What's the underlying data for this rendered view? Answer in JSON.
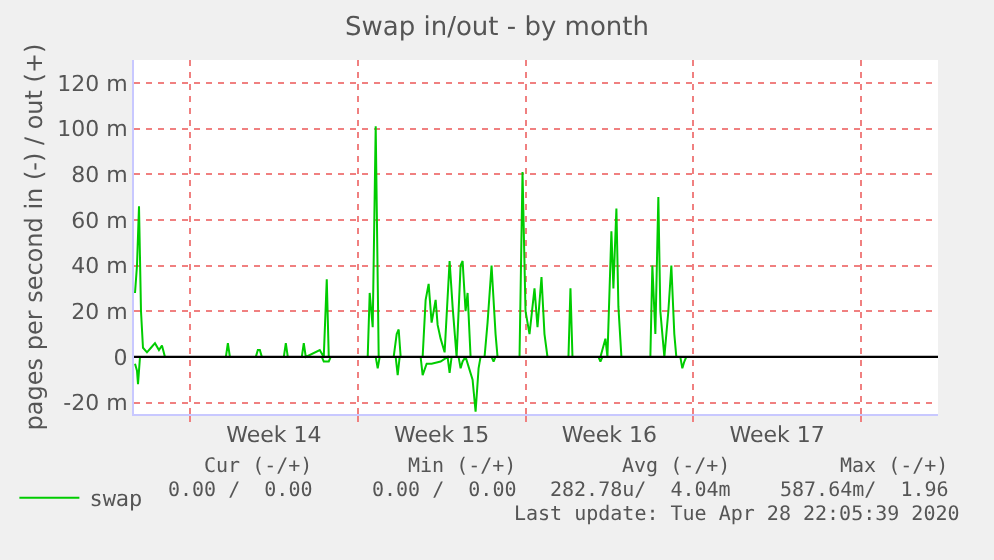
{
  "chart_data": {
    "type": "line",
    "title": "Swap in/out - by month",
    "ylabel": "pages per second in (-) / out (+)",
    "xlim": [
      "2020-03-27T16:00",
      "2020-04-30T05:00"
    ],
    "xticks": [
      {
        "value": "2020-03-30",
        "label": null
      },
      {
        "value": "2020-04-02T12:00",
        "label": "Week 14"
      },
      {
        "value": "2020-04-06",
        "label": null
      },
      {
        "value": "2020-04-09T12:00",
        "label": "Week 15"
      },
      {
        "value": "2020-04-13",
        "label": null
      },
      {
        "value": "2020-04-16T12:00",
        "label": "Week 16"
      },
      {
        "value": "2020-04-20",
        "label": null
      },
      {
        "value": "2020-04-23T12:00",
        "label": "Week 17"
      },
      {
        "value": "2020-04-27",
        "label": null
      }
    ],
    "ylim": [
      -25,
      130
    ],
    "yticks": [
      {
        "value": -20,
        "label": "-20 m"
      },
      0,
      {
        "value": 20,
        "label": "20 m"
      },
      {
        "value": 40,
        "label": "40 m"
      },
      {
        "value": 60,
        "label": "60 m"
      },
      {
        "value": 80,
        "label": "80 m"
      },
      {
        "value": 100,
        "label": "100 m"
      },
      {
        "value": 120,
        "label": "120 m"
      }
    ],
    "grid": true,
    "legend": "bottom left",
    "marker": "none",
    "line_style": "solid",
    "ref_lines": [
      {
        "axis": "y",
        "value": 0,
        "color": "#000000"
      }
    ],
    "series": [
      {
        "name": "swap",
        "color": "#00cc00",
        "x": [
          "2020-03-27T17:00",
          "2020-03-27T19:00",
          "2020-03-27T21:00",
          "2020-03-27T23:00",
          "2020-03-28T01:00",
          "2020-03-28T05:00",
          "2020-03-28T09:00",
          "2020-03-28T13:00",
          "2020-03-28T17:00",
          "2020-03-28T20:00",
          "2020-03-28T23:00",
          "2020-03-31T12:00",
          "2020-03-31T14:00",
          "2020-03-31T16:00",
          "2020-04-01T18:00",
          "2020-04-01T20:00",
          "2020-04-01T22:00",
          "2020-04-02T00:00",
          "2020-04-02T22:00",
          "2020-04-03T00:00",
          "2020-04-03T02:00",
          "2020-04-03T16:00",
          "2020-04-03T18:00",
          "2020-04-03T20:00",
          "2020-04-04T10:00",
          "2020-04-04T14:00",
          "2020-04-04T17:00",
          "2020-04-04T19:00",
          "2020-04-06T10:00",
          "2020-04-06T12:00",
          "2020-04-06T15:00",
          "2020-04-06T18:00",
          "2020-04-06T21:00",
          "2020-04-07T12:00",
          "2020-04-07T15:00",
          "2020-04-07T17:00",
          "2020-04-07T19:00",
          "2020-04-08T17:00",
          "2020-04-08T20:00",
          "2020-04-08T23:00",
          "2020-04-09T02:00",
          "2020-04-09T06:00",
          "2020-04-09T08:00",
          "2020-04-09T11:00",
          "2020-04-09T15:00",
          "2020-04-09T20:00",
          "2020-04-09T23:00",
          "2020-04-10T03:00",
          "2020-04-10T07:00",
          "2020-04-10T09:00",
          "2020-04-10T12:00",
          "2020-04-10T14:00",
          "2020-04-10T17:00",
          "2020-04-11T07:00",
          "2020-04-11T10:00",
          "2020-04-11T14:00",
          "2020-04-11T18:00",
          "2020-04-11T20:00",
          "2020-04-12T18:00",
          "2020-04-12T21:00",
          "2020-04-13T00:00",
          "2020-04-13T04:00",
          "2020-04-13T09:00",
          "2020-04-13T12:00",
          "2020-04-13T16:00",
          "2020-04-13T19:00",
          "2020-04-13T22:00",
          "2020-04-14T19:00",
          "2020-04-14T21:00",
          "2020-04-14T23:00",
          "2020-04-16T03:00",
          "2020-04-16T08:00",
          "2020-04-16T10:00",
          "2020-04-16T14:00",
          "2020-04-16T16:00",
          "2020-04-16T19:00",
          "2020-04-16T21:00",
          "2020-04-17T00:00",
          "2020-04-18T05:00",
          "2020-04-18T07:00",
          "2020-04-18T10:00",
          "2020-04-18T13:00",
          "2020-04-18T15:00",
          "2020-04-18T19:00",
          "2020-04-18T23:00",
          "2020-04-19T02:00",
          "2020-04-19T05:00",
          "2020-04-19T07:00",
          "2020-04-19T17:00"
        ],
        "values": [
          28,
          40,
          66,
          20,
          4,
          2,
          4,
          6,
          3,
          5,
          0,
          0,
          6,
          0,
          0,
          3,
          3,
          0,
          0,
          6,
          0,
          0,
          6,
          0,
          3,
          0,
          34,
          0,
          0,
          28,
          13,
          101,
          0,
          0,
          10,
          12,
          0,
          0,
          25,
          32,
          15,
          25,
          14,
          8,
          2,
          42,
          22,
          0,
          40,
          42,
          20,
          28,
          0,
          0,
          15,
          40,
          10,
          0,
          0,
          81,
          20,
          10,
          30,
          13,
          35,
          10,
          0,
          0,
          30,
          0,
          0,
          8,
          0,
          55,
          30,
          65,
          22,
          0,
          0,
          40,
          10,
          70,
          20,
          0,
          20,
          40,
          10,
          0,
          0
        ]
      },
      {
        "color": "#00cc00",
        "x": [
          "2020-03-27T17:00",
          "2020-03-27T19:00",
          "2020-03-27T20:00",
          "2020-03-27T22:00",
          "2020-04-04T12:00",
          "2020-04-04T14:00",
          "2020-04-04T19:00",
          "2020-04-04T21:00",
          "2020-04-06T18:00",
          "2020-04-06T20:00",
          "2020-04-06T22:00",
          "2020-04-07T14:00",
          "2020-04-07T16:00",
          "2020-04-07T18:00",
          "2020-04-08T15:00",
          "2020-04-08T17:00",
          "2020-04-08T21:00",
          "2020-04-09T02:00",
          "2020-04-09T11:00",
          "2020-04-09T18:00",
          "2020-04-09T20:00",
          "2020-04-09T22:00",
          "2020-04-10T05:00",
          "2020-04-10T07:00",
          "2020-04-10T09:00",
          "2020-04-10T12:00",
          "2020-04-10T19:00",
          "2020-04-10T22:00",
          "2020-04-11T01:00",
          "2020-04-11T03:00",
          "2020-04-11T14:00",
          "2020-04-11T16:00",
          "2020-04-11T18:00",
          "2020-04-16T01:00",
          "2020-04-16T03:00",
          "2020-04-16T05:00",
          "2020-04-19T11:00",
          "2020-04-19T13:00",
          "2020-04-19T15:00",
          "2020-04-19T17:00"
        ],
        "values": [
          -3,
          -6,
          -12,
          0,
          0,
          -2,
          -2,
          0,
          0,
          -5,
          0,
          0,
          -8,
          0,
          0,
          -8,
          -3,
          -3,
          -2,
          0,
          -7,
          0,
          0,
          -5,
          -2,
          0,
          -10,
          -24,
          -5,
          0,
          0,
          -2,
          0,
          0,
          -2,
          0,
          0,
          -5,
          -2,
          0
        ]
      }
    ],
    "annotations": [
      "Cur (-/+)",
      "Min (-/+)",
      "Avg (-/+)",
      "Max (-/+)",
      "0.00 /  0.00",
      "0.00 /  0.00",
      "282.78u/  4.04m",
      "587.64m/  1.96",
      "Last update: Tue Apr 28 22:05:39 2020"
    ]
  }
}
